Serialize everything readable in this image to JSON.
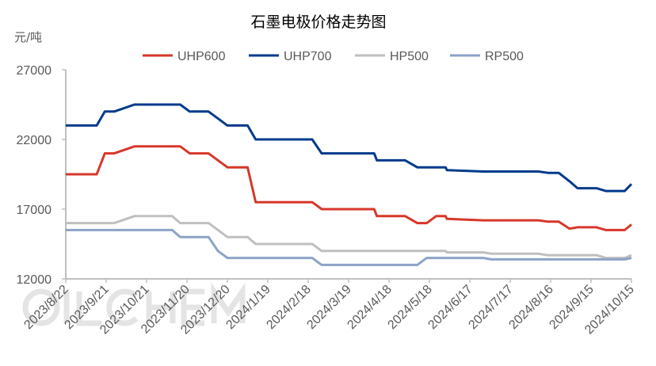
{
  "chart_data": {
    "type": "line",
    "title": "石墨电极价格走势图",
    "ylabel": "元/吨",
    "xlabel": "",
    "ylim": [
      12000,
      27000
    ],
    "yticks": [
      12000,
      17000,
      22000,
      27000
    ],
    "xlim": [
      "2023-08-22",
      "2024-10-15"
    ],
    "xticks": [
      "2023/8/22",
      "2023/9/21",
      "2023/10/21",
      "2023/11/20",
      "2023/12/20",
      "2024/1/19",
      "2024/2/18",
      "2024/3/19",
      "2024/4/18",
      "2024/5/18",
      "2024/6/17",
      "2024/7/17",
      "2024/8/16",
      "2024/9/15",
      "2024/10/15"
    ],
    "legend_position": "top",
    "grid": false,
    "watermark": "OILCHEM",
    "series": [
      {
        "name": "UHP600",
        "color": "#d7372a",
        "points": [
          [
            "2023-08-22",
            19500
          ],
          [
            "2023-09-14",
            19500
          ],
          [
            "2023-09-20",
            21000
          ],
          [
            "2023-09-27",
            21000
          ],
          [
            "2023-10-12",
            21500
          ],
          [
            "2023-11-15",
            21500
          ],
          [
            "2023-11-22",
            21000
          ],
          [
            "2023-12-06",
            21000
          ],
          [
            "2023-12-20",
            20000
          ],
          [
            "2024-01-04",
            20000
          ],
          [
            "2024-01-10",
            17500
          ],
          [
            "2024-02-21",
            17500
          ],
          [
            "2024-02-28",
            17000
          ],
          [
            "2024-04-07",
            17000
          ],
          [
            "2024-04-09",
            16500
          ],
          [
            "2024-04-30",
            16500
          ],
          [
            "2024-05-09",
            16000
          ],
          [
            "2024-05-16",
            16000
          ],
          [
            "2024-05-23",
            16500
          ],
          [
            "2024-05-30",
            16500
          ],
          [
            "2024-05-31",
            16300
          ],
          [
            "2024-06-27",
            16200
          ],
          [
            "2024-08-07",
            16200
          ],
          [
            "2024-08-14",
            16100
          ],
          [
            "2024-08-22",
            16100
          ],
          [
            "2024-08-30",
            15600
          ],
          [
            "2024-09-05",
            15700
          ],
          [
            "2024-09-19",
            15700
          ],
          [
            "2024-09-26",
            15500
          ],
          [
            "2024-10-10",
            15500
          ],
          [
            "2024-10-15",
            15900
          ]
        ]
      },
      {
        "name": "UHP700",
        "color": "#003a8c",
        "points": [
          [
            "2023-08-22",
            23000
          ],
          [
            "2023-09-14",
            23000
          ],
          [
            "2023-09-20",
            24000
          ],
          [
            "2023-09-27",
            24000
          ],
          [
            "2023-10-12",
            24500
          ],
          [
            "2023-11-15",
            24500
          ],
          [
            "2023-11-22",
            24000
          ],
          [
            "2023-12-06",
            24000
          ],
          [
            "2023-12-13",
            23500
          ],
          [
            "2023-12-20",
            23000
          ],
          [
            "2024-01-04",
            23000
          ],
          [
            "2024-01-10",
            22000
          ],
          [
            "2024-02-21",
            22000
          ],
          [
            "2024-02-28",
            21000
          ],
          [
            "2024-04-07",
            21000
          ],
          [
            "2024-04-09",
            20500
          ],
          [
            "2024-04-30",
            20500
          ],
          [
            "2024-05-09",
            20000
          ],
          [
            "2024-05-30",
            20000
          ],
          [
            "2024-05-31",
            19800
          ],
          [
            "2024-06-27",
            19700
          ],
          [
            "2024-08-07",
            19700
          ],
          [
            "2024-08-14",
            19600
          ],
          [
            "2024-08-22",
            19600
          ],
          [
            "2024-08-30",
            19000
          ],
          [
            "2024-09-05",
            18500
          ],
          [
            "2024-09-19",
            18500
          ],
          [
            "2024-09-26",
            18300
          ],
          [
            "2024-10-10",
            18300
          ],
          [
            "2024-10-15",
            18800
          ]
        ]
      },
      {
        "name": "HP500",
        "color": "#bfbfbf",
        "points": [
          [
            "2023-08-22",
            16000
          ],
          [
            "2023-09-27",
            16000
          ],
          [
            "2023-10-12",
            16500
          ],
          [
            "2023-11-09",
            16500
          ],
          [
            "2023-11-15",
            16000
          ],
          [
            "2023-12-06",
            16000
          ],
          [
            "2023-12-20",
            15000
          ],
          [
            "2024-01-04",
            15000
          ],
          [
            "2024-01-10",
            14500
          ],
          [
            "2024-02-21",
            14500
          ],
          [
            "2024-02-28",
            14000
          ],
          [
            "2024-05-30",
            14000
          ],
          [
            "2024-05-31",
            13900
          ],
          [
            "2024-06-27",
            13900
          ],
          [
            "2024-07-03",
            13800
          ],
          [
            "2024-08-07",
            13800
          ],
          [
            "2024-08-14",
            13700
          ],
          [
            "2024-09-19",
            13700
          ],
          [
            "2024-09-26",
            13500
          ],
          [
            "2024-10-10",
            13500
          ],
          [
            "2024-10-15",
            13700
          ]
        ]
      },
      {
        "name": "RP500",
        "color": "#8ca3c7",
        "points": [
          [
            "2023-08-22",
            15500
          ],
          [
            "2023-11-09",
            15500
          ],
          [
            "2023-11-15",
            15000
          ],
          [
            "2023-12-06",
            15000
          ],
          [
            "2023-12-13",
            14000
          ],
          [
            "2023-12-20",
            13500
          ],
          [
            "2024-02-21",
            13500
          ],
          [
            "2024-02-28",
            13000
          ],
          [
            "2024-05-09",
            13000
          ],
          [
            "2024-05-16",
            13500
          ],
          [
            "2024-06-27",
            13500
          ],
          [
            "2024-07-03",
            13400
          ],
          [
            "2024-10-10",
            13400
          ],
          [
            "2024-10-15",
            13500
          ]
        ]
      }
    ]
  }
}
